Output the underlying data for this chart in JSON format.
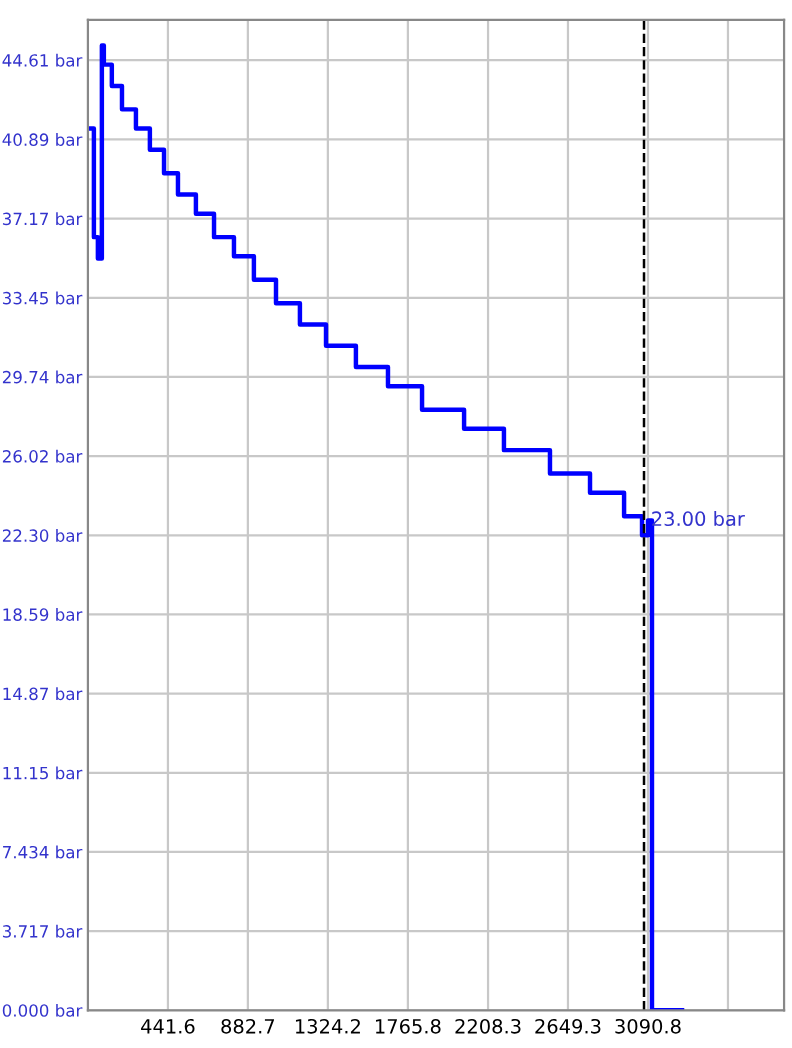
{
  "chart_data": {
    "type": "step",
    "color": "#0000ff",
    "x": [
      0,
      33,
      55,
      77,
      88,
      132,
      188,
      265,
      342,
      420,
      497,
      596,
      696,
      806,
      916,
      1038,
      1170,
      1314,
      1479,
      1656,
      1844,
      2076,
      2296,
      2550,
      2771,
      2959,
      3058,
      3091,
      3113,
      3279
    ],
    "values": [
      41.4,
      36.3,
      35.3,
      45.3,
      44.4,
      43.4,
      42.3,
      41.4,
      40.4,
      39.3,
      38.3,
      37.4,
      36.3,
      35.4,
      34.3,
      33.2,
      32.2,
      31.2,
      30.2,
      29.3,
      28.2,
      27.3,
      26.3,
      25.2,
      24.3,
      23.2,
      22.3,
      23.0,
      0,
      0
    ],
    "xlim": [
      0,
      3842
    ],
    "ylim": [
      0,
      46.5
    ],
    "xticks": [
      441.6,
      882.7,
      1324.2,
      1765.8,
      2208.3,
      2649.3,
      3090.8,
      {
        "value": 3532.3,
        "label": null
      }
    ],
    "yticks": [
      {
        "value": 0,
        "label": "0.000 bar"
      },
      {
        "value": 3.717,
        "label": "3.717 bar"
      },
      {
        "value": 7.434,
        "label": "7.434 bar"
      },
      {
        "value": 11.15,
        "label": "11.15 bar"
      },
      {
        "value": 14.87,
        "label": "14.87 bar"
      },
      {
        "value": 18.59,
        "label": "18.59 bar"
      },
      {
        "value": 22.3,
        "label": "22.30 bar"
      },
      {
        "value": 26.02,
        "label": "26.02 bar"
      },
      {
        "value": 29.74,
        "label": "29.74 bar"
      },
      {
        "value": 33.45,
        "label": "33.45 bar"
      },
      {
        "value": 37.17,
        "label": "37.17 bar"
      },
      {
        "value": 40.89,
        "label": "40.89 bar"
      },
      {
        "value": 44.61,
        "label": "44.61 bar"
      }
    ],
    "grid": true,
    "ref_lines": [
      {
        "axis": "x",
        "value": 3069,
        "color": "#000000",
        "line_style": "dashed"
      }
    ],
    "annotations": [
      {
        "text": "23.00 bar",
        "x": 3091,
        "y": 23.0
      }
    ]
  }
}
